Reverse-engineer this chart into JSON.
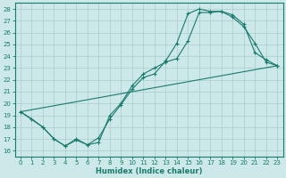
{
  "xlabel": "Humidex (Indice chaleur)",
  "bg_color": "#cce8e8",
  "grid_color": "#aacccc",
  "line_color": "#1a7a6e",
  "xlim": [
    -0.5,
    23.5
  ],
  "ylim": [
    15.5,
    28.5
  ],
  "yticks": [
    16,
    17,
    18,
    19,
    20,
    21,
    22,
    23,
    24,
    25,
    26,
    27,
    28
  ],
  "xticks": [
    0,
    1,
    2,
    3,
    4,
    5,
    6,
    7,
    8,
    9,
    10,
    11,
    12,
    13,
    14,
    15,
    16,
    17,
    18,
    19,
    20,
    21,
    22,
    23
  ],
  "line1_x": [
    0,
    1,
    2,
    3,
    4,
    5,
    6,
    7,
    8,
    9,
    10,
    11,
    12,
    13,
    14,
    15,
    16,
    17,
    18,
    19,
    20,
    21,
    22,
    23
  ],
  "line1_y": [
    19.3,
    18.7,
    18.0,
    17.0,
    16.4,
    16.9,
    16.5,
    17.1,
    18.7,
    19.9,
    21.2,
    22.2,
    22.5,
    23.6,
    25.1,
    27.6,
    28.0,
    27.8,
    27.8,
    27.3,
    26.5,
    25.1,
    23.5,
    23.2
  ],
  "line2_x": [
    0,
    2,
    3,
    4,
    5,
    6,
    7,
    8,
    9,
    10,
    11,
    12,
    13,
    14,
    15,
    16,
    17,
    18,
    19,
    20,
    21,
    22,
    23
  ],
  "line2_y": [
    19.3,
    18.0,
    17.0,
    16.4,
    17.0,
    16.5,
    16.7,
    19.0,
    20.0,
    21.5,
    22.5,
    23.0,
    23.5,
    23.8,
    25.3,
    27.7,
    27.7,
    27.8,
    27.5,
    26.7,
    24.3,
    23.7,
    23.2
  ],
  "line3_x": [
    0,
    23
  ],
  "line3_y": [
    19.3,
    23.2
  ]
}
